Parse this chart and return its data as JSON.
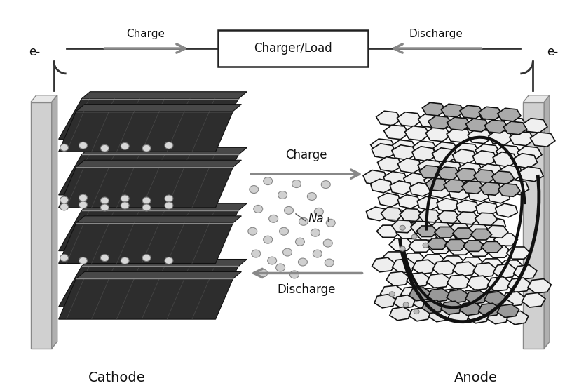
{
  "bg_color": "#ffffff",
  "cathode_label": "Cathode",
  "anode_label": "Anode",
  "charger_label": "Charger/Load",
  "charge_label": "Charge",
  "discharge_label": "Discharge",
  "na_label": "Na⁺",
  "electron_label": "e-",
  "arrow_color": "#888888",
  "circuit_color": "#333333",
  "plate_dark": "#2e2e2e",
  "plate_mid": "#3d3d3d",
  "plate_light": "#555555",
  "plate_highlight": "#777777",
  "collector_face": "#cccccc",
  "collector_edge": "#888888",
  "collector_side": "#aaaaaa",
  "na_dot_color": "#cccccc",
  "na_dot_edge": "#888888",
  "hex_fill_white": "#f0f0f0",
  "hex_fill_gray": "#aaaaaa",
  "hex_edge": "#111111",
  "charger_box_edge": "#222222",
  "label_color": "#111111"
}
